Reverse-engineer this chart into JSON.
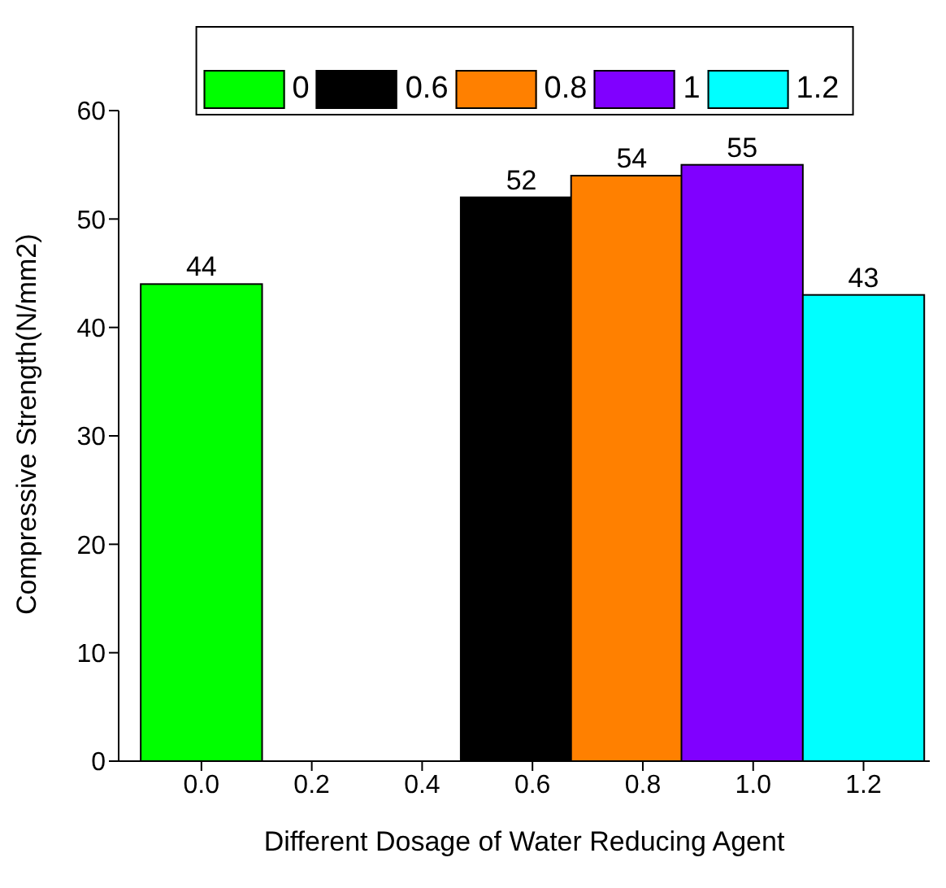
{
  "chart_data": {
    "type": "bar",
    "xlabel": "Different Dosage of Water Reducing Agent",
    "ylabel": "Compressive Strength(N/mm2)",
    "series": [
      {
        "name": "0",
        "color": "#00ff00",
        "x": [
          0
        ],
        "values": [
          44
        ]
      },
      {
        "name": "0.6",
        "color": "#000000",
        "x": [
          0.58
        ],
        "values": [
          52
        ]
      },
      {
        "name": "0.8",
        "color": "#ff8000",
        "x": [
          0.78
        ],
        "values": [
          54
        ]
      },
      {
        "name": "1",
        "color": "#8000ff",
        "x": [
          0.98
        ],
        "values": [
          55
        ]
      },
      {
        "name": "1.2",
        "color": "#00ffff",
        "x": [
          1.2
        ],
        "values": [
          43
        ]
      }
    ],
    "xlim": [
      -0.15,
      1.32
    ],
    "xticks": [
      {
        "value": 0,
        "label": "0.0"
      },
      {
        "value": 0.2,
        "label": "0.2"
      },
      {
        "value": 0.4,
        "label": "0.4"
      },
      {
        "value": 0.6,
        "label": "0.6"
      },
      {
        "value": 0.8,
        "label": "0.8"
      },
      {
        "value": 1,
        "label": "1.0"
      },
      {
        "value": 1.2,
        "label": "1.2"
      }
    ],
    "ylim": [
      0,
      60
    ],
    "yticks": [
      0,
      10,
      20,
      30,
      40,
      50,
      60
    ],
    "data_labels": true,
    "legend": "top",
    "grid": false
  }
}
